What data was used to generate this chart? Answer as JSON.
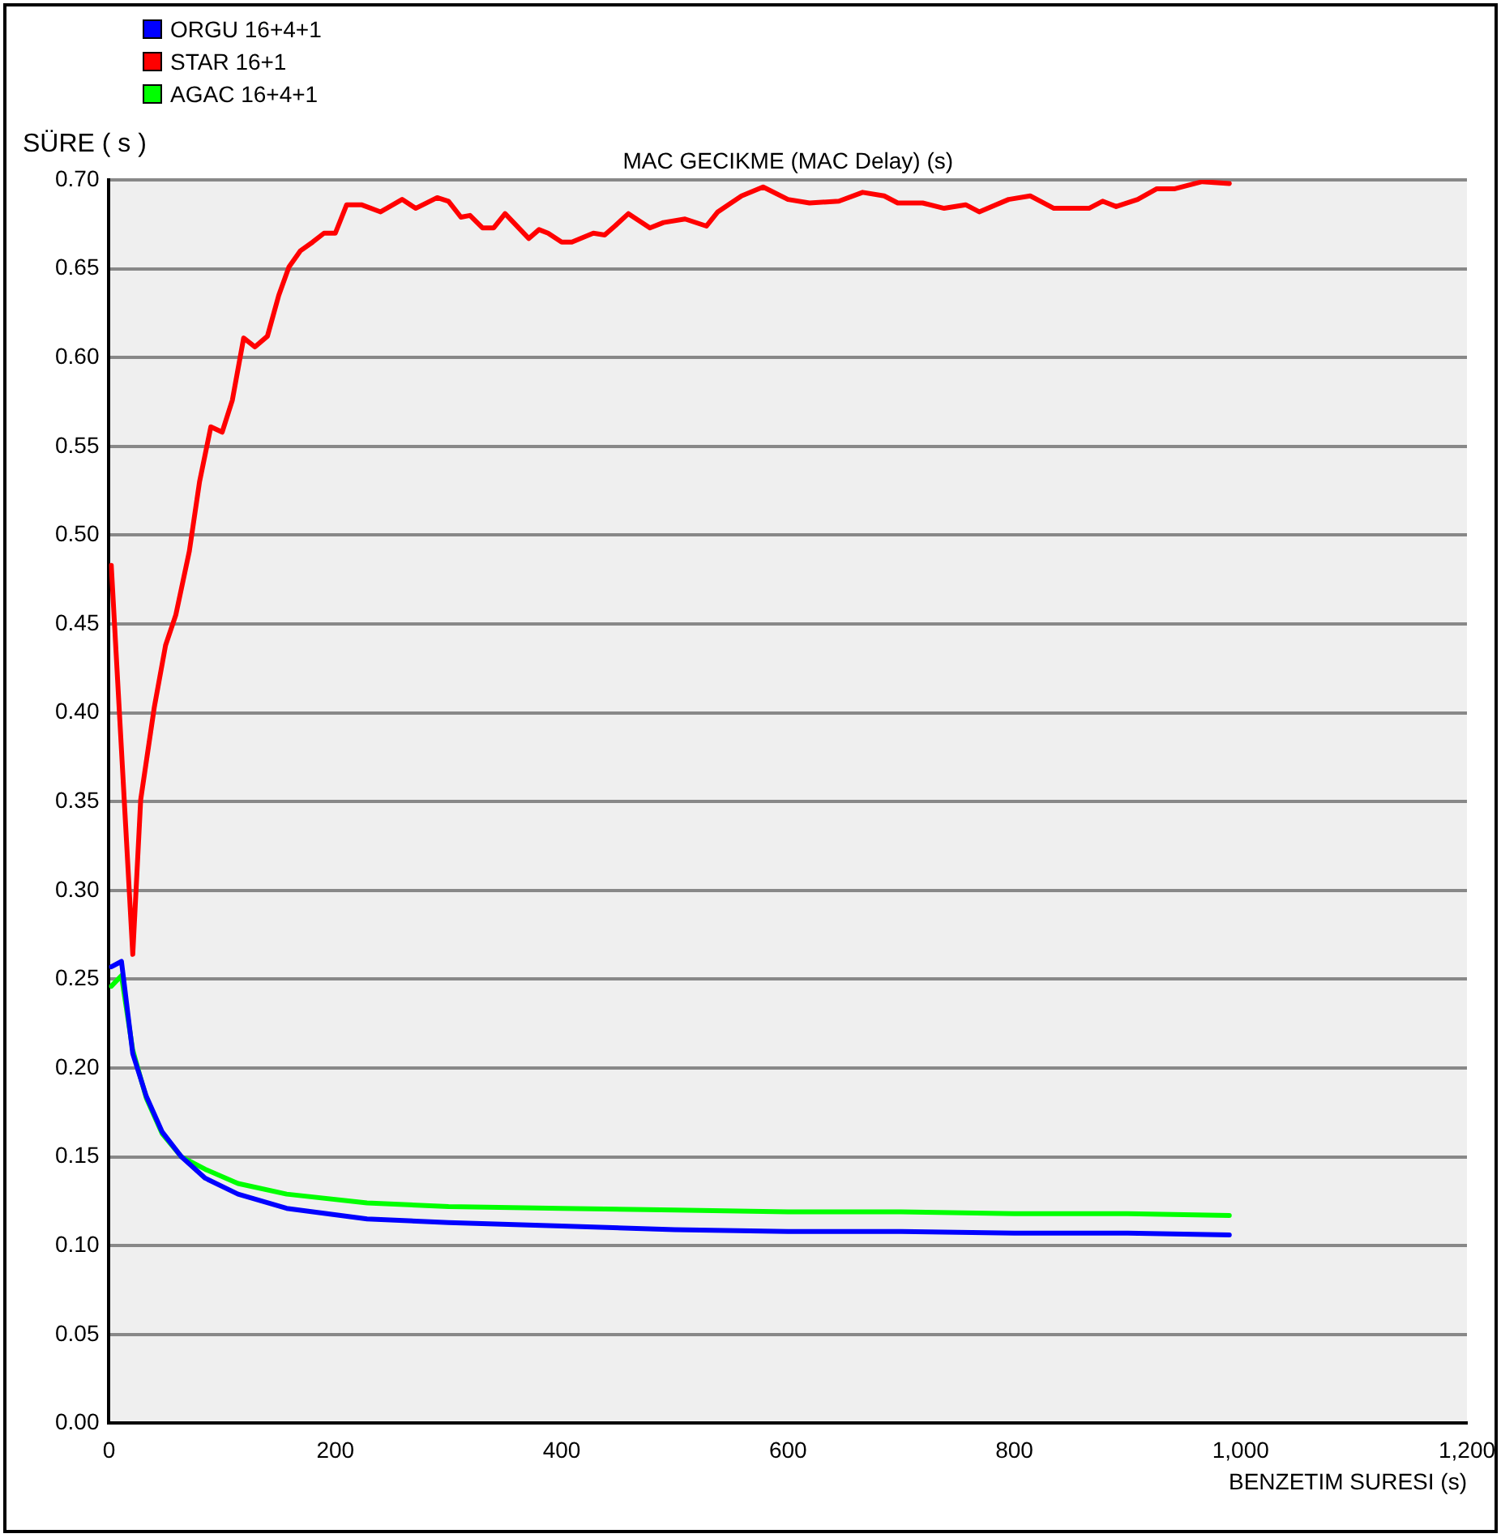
{
  "chart_data": {
    "type": "line",
    "title": "MAC GECIKME (MAC Delay) (s)",
    "xlabel": "BENZETIM SURESI (s)",
    "ylabel": "SÜRE ( s )",
    "xlim": [
      0,
      1200
    ],
    "xticks": [
      0,
      200,
      400,
      600,
      800,
      {
        "value": 1000,
        "label": "1,000"
      },
      {
        "value": 1200,
        "label": "1,200"
      }
    ],
    "ylim": [
      0,
      0.7
    ],
    "yticks": [
      {
        "value": 0,
        "label": "0.00"
      },
      {
        "value": 0.05,
        "label": "0.05"
      },
      {
        "value": 0.1,
        "label": "0.10"
      },
      {
        "value": 0.15,
        "label": "0.15"
      },
      {
        "value": 0.2,
        "label": "0.20"
      },
      {
        "value": 0.25,
        "label": "0.25"
      },
      {
        "value": 0.3,
        "label": "0.30"
      },
      {
        "value": 0.35,
        "label": "0.35"
      },
      {
        "value": 0.4,
        "label": "0.40"
      },
      {
        "value": 0.45,
        "label": "0.45"
      },
      {
        "value": 0.5,
        "label": "0.50"
      },
      {
        "value": 0.55,
        "label": "0.55"
      },
      {
        "value": 0.6,
        "label": "0.60"
      },
      {
        "value": 0.65,
        "label": "0.65"
      },
      {
        "value": 0.7,
        "label": "0.70"
      }
    ],
    "grid": "y",
    "legend": "top left",
    "marker": "none",
    "line_style": "solid",
    "series": [
      {
        "name": "ORGU 16+4+1",
        "color": "#0000ff",
        "x": [
          2,
          11,
          21,
          33,
          47,
          64,
          85,
          114,
          157,
          228,
          300,
          400,
          500,
          600,
          700,
          800,
          900,
          990
        ],
        "values": [
          0.257,
          0.26,
          0.208,
          0.184,
          0.164,
          0.15,
          0.138,
          0.129,
          0.121,
          0.115,
          0.113,
          0.111,
          0.109,
          0.108,
          0.108,
          0.107,
          0.107,
          0.106
        ]
      },
      {
        "name": "STAR 16+1",
        "color": "#ff0000",
        "x": [
          2,
          21,
          28,
          40,
          50,
          59,
          71,
          80,
          90,
          100,
          109,
          119,
          129,
          140,
          150,
          159,
          169,
          180,
          190,
          200,
          210,
          223,
          240,
          259,
          271,
          290,
          300,
          311,
          319,
          330,
          340,
          350,
          371,
          380,
          388,
          400,
          409,
          428,
          438,
          447,
          459,
          478,
          490,
          509,
          528,
          538,
          559,
          578,
          600,
          619,
          645,
          666,
          685,
          697,
          719,
          738,
          757,
          769,
          795,
          814,
          835,
          852,
          866,
          878,
          890,
          909,
          926,
          942,
          966,
          990
        ],
        "values": [
          0.483,
          0.264,
          0.351,
          0.403,
          0.438,
          0.455,
          0.491,
          0.53,
          0.561,
          0.558,
          0.576,
          0.611,
          0.606,
          0.612,
          0.635,
          0.651,
          0.66,
          0.665,
          0.67,
          0.67,
          0.686,
          0.686,
          0.682,
          0.689,
          0.684,
          0.69,
          0.688,
          0.679,
          0.68,
          0.673,
          0.673,
          0.681,
          0.667,
          0.672,
          0.67,
          0.665,
          0.665,
          0.67,
          0.669,
          0.674,
          0.681,
          0.673,
          0.676,
          0.678,
          0.674,
          0.682,
          0.691,
          0.696,
          0.689,
          0.687,
          0.688,
          0.693,
          0.691,
          0.687,
          0.687,
          0.684,
          0.686,
          0.682,
          0.689,
          0.691,
          0.684,
          0.684,
          0.684,
          0.688,
          0.685,
          0.689,
          0.695,
          0.695,
          0.699,
          0.698
        ]
      },
      {
        "name": "AGAC 16+4+1",
        "color": "#00ff00",
        "x": [
          2,
          11,
          21,
          33,
          47,
          64,
          85,
          114,
          157,
          228,
          300,
          400,
          500,
          600,
          700,
          800,
          900,
          990
        ],
        "values": [
          0.246,
          0.252,
          0.21,
          0.183,
          0.163,
          0.15,
          0.143,
          0.135,
          0.129,
          0.124,
          0.122,
          0.121,
          0.12,
          0.119,
          0.119,
          0.118,
          0.118,
          0.117
        ]
      }
    ]
  }
}
